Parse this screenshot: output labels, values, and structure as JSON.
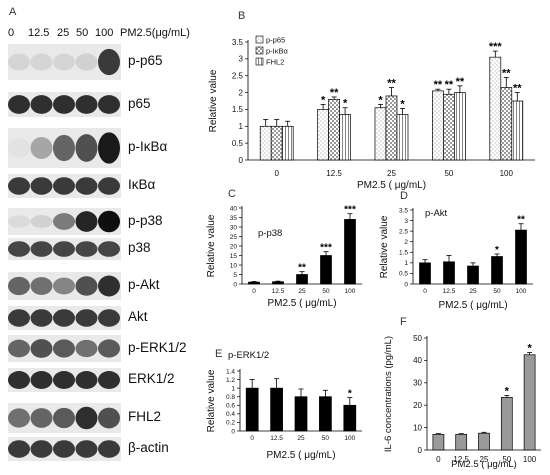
{
  "panel_letters": {
    "a": "A",
    "b": "B",
    "c": "C",
    "d": "D",
    "e": "E",
    "f": "F"
  },
  "blot": {
    "concentrations": [
      "0",
      "12.5",
      "25",
      "50",
      "100"
    ],
    "unit_label": "PM2.5(μg/mL)",
    "rows": [
      {
        "label": "p-p65"
      },
      {
        "label": "p65"
      },
      {
        "label": "p-IκBα"
      },
      {
        "label": "IκBα"
      },
      {
        "label": "p-p38"
      },
      {
        "label": "p38"
      },
      {
        "label": "p-Akt"
      },
      {
        "label": "Akt"
      },
      {
        "label": "p-ERK1/2"
      },
      {
        "label": "ERK1/2"
      },
      {
        "label": "FHL2"
      },
      {
        "label": "β-actin"
      }
    ]
  },
  "chart_data": [
    {
      "id": "B",
      "type": "bar",
      "categories": [
        "0",
        "12.5",
        "25",
        "50",
        "100"
      ],
      "xlabel": "PM2.5 ( μg/mL)",
      "ylabel": "Relative value",
      "ylim": [
        0,
        3.5
      ],
      "yticks": [
        "0",
        "0.5",
        "1",
        "1.5",
        "2",
        "2.5",
        "3",
        "3.5"
      ],
      "legend_position": "top-left",
      "series": [
        {
          "name": "p-p65",
          "values": [
            1.0,
            1.5,
            1.55,
            2.05,
            3.05
          ],
          "errors": [
            0.2,
            0.15,
            0.1,
            0.05,
            0.18
          ],
          "sig": [
            "",
            "*",
            "*",
            "**",
            "***"
          ]
        },
        {
          "name": "p-IκBα",
          "values": [
            1.0,
            1.8,
            1.9,
            1.95,
            2.15
          ],
          "errors": [
            0.2,
            0.07,
            0.25,
            0.15,
            0.3
          ],
          "sig": [
            "",
            "**",
            "**",
            "**",
            "**"
          ]
        },
        {
          "name": "FHL2",
          "values": [
            1.0,
            1.35,
            1.35,
            2.0,
            1.75
          ],
          "errors": [
            0.15,
            0.2,
            0.18,
            0.2,
            0.25
          ],
          "sig": [
            "",
            "*",
            "*",
            "**",
            "**"
          ]
        }
      ]
    },
    {
      "id": "C",
      "type": "bar",
      "title": "p-p38",
      "categories": [
        "0",
        "12.5",
        "25",
        "50",
        "100"
      ],
      "values": [
        1,
        1.2,
        5,
        15,
        34
      ],
      "errors": [
        0.3,
        0.3,
        1.5,
        2,
        3
      ],
      "sig": [
        "",
        "",
        "**",
        "***",
        "***"
      ],
      "xlabel": "PM2.5 ( μg/mL)",
      "ylabel": "Relative value",
      "ylim": [
        0,
        40
      ],
      "yticks": [
        "0",
        "5",
        "10",
        "15",
        "20",
        "25",
        "30",
        "35",
        "40"
      ]
    },
    {
      "id": "D",
      "type": "bar",
      "title": "p-Akt",
      "categories": [
        "0",
        "12.5",
        "25",
        "50",
        "100"
      ],
      "values": [
        1.0,
        1.05,
        0.85,
        1.3,
        2.55
      ],
      "errors": [
        0.15,
        0.3,
        0.15,
        0.12,
        0.3
      ],
      "sig": [
        "",
        "",
        "",
        "*",
        "**"
      ],
      "xlabel": "PM2.5 ( μg/mL)",
      "ylabel": "Relative value",
      "ylim": [
        0,
        3.5
      ],
      "yticks": [
        "0",
        "0.5",
        "1",
        "1.5",
        "2",
        "2.5",
        "3",
        "3.5"
      ]
    },
    {
      "id": "E",
      "type": "bar",
      "title": "p-ERK1/2",
      "categories": [
        "0",
        "12.5",
        "25",
        "50",
        "100"
      ],
      "values": [
        1.0,
        1.0,
        0.8,
        0.8,
        0.6
      ],
      "errors": [
        0.2,
        0.22,
        0.18,
        0.15,
        0.18
      ],
      "sig": [
        "",
        "",
        "",
        "",
        "*"
      ],
      "xlabel": "PM2.5 ( μg/mL)",
      "ylabel": "Relative value",
      "ylim": [
        0,
        1.4
      ],
      "yticks": [
        "0",
        "0.2",
        "0.4",
        "0.6",
        "0.8",
        "1",
        "1.2",
        "1.4"
      ]
    },
    {
      "id": "F",
      "type": "bar",
      "categories": [
        "0",
        "12.5",
        "25",
        "50",
        "100"
      ],
      "values": [
        7,
        7,
        7.5,
        23.5,
        42.5
      ],
      "errors": [
        0.3,
        0.3,
        0.4,
        0.8,
        1
      ],
      "sig": [
        "",
        "",
        "",
        "*",
        "*"
      ],
      "xlabel": "PM2.5 ( μg/mL)",
      "ylabel": "IL-6 concentrations (pg/mL)",
      "ylim": [
        0,
        50
      ],
      "yticks": [
        "0",
        "10",
        "20",
        "30",
        "40",
        "50"
      ]
    }
  ]
}
